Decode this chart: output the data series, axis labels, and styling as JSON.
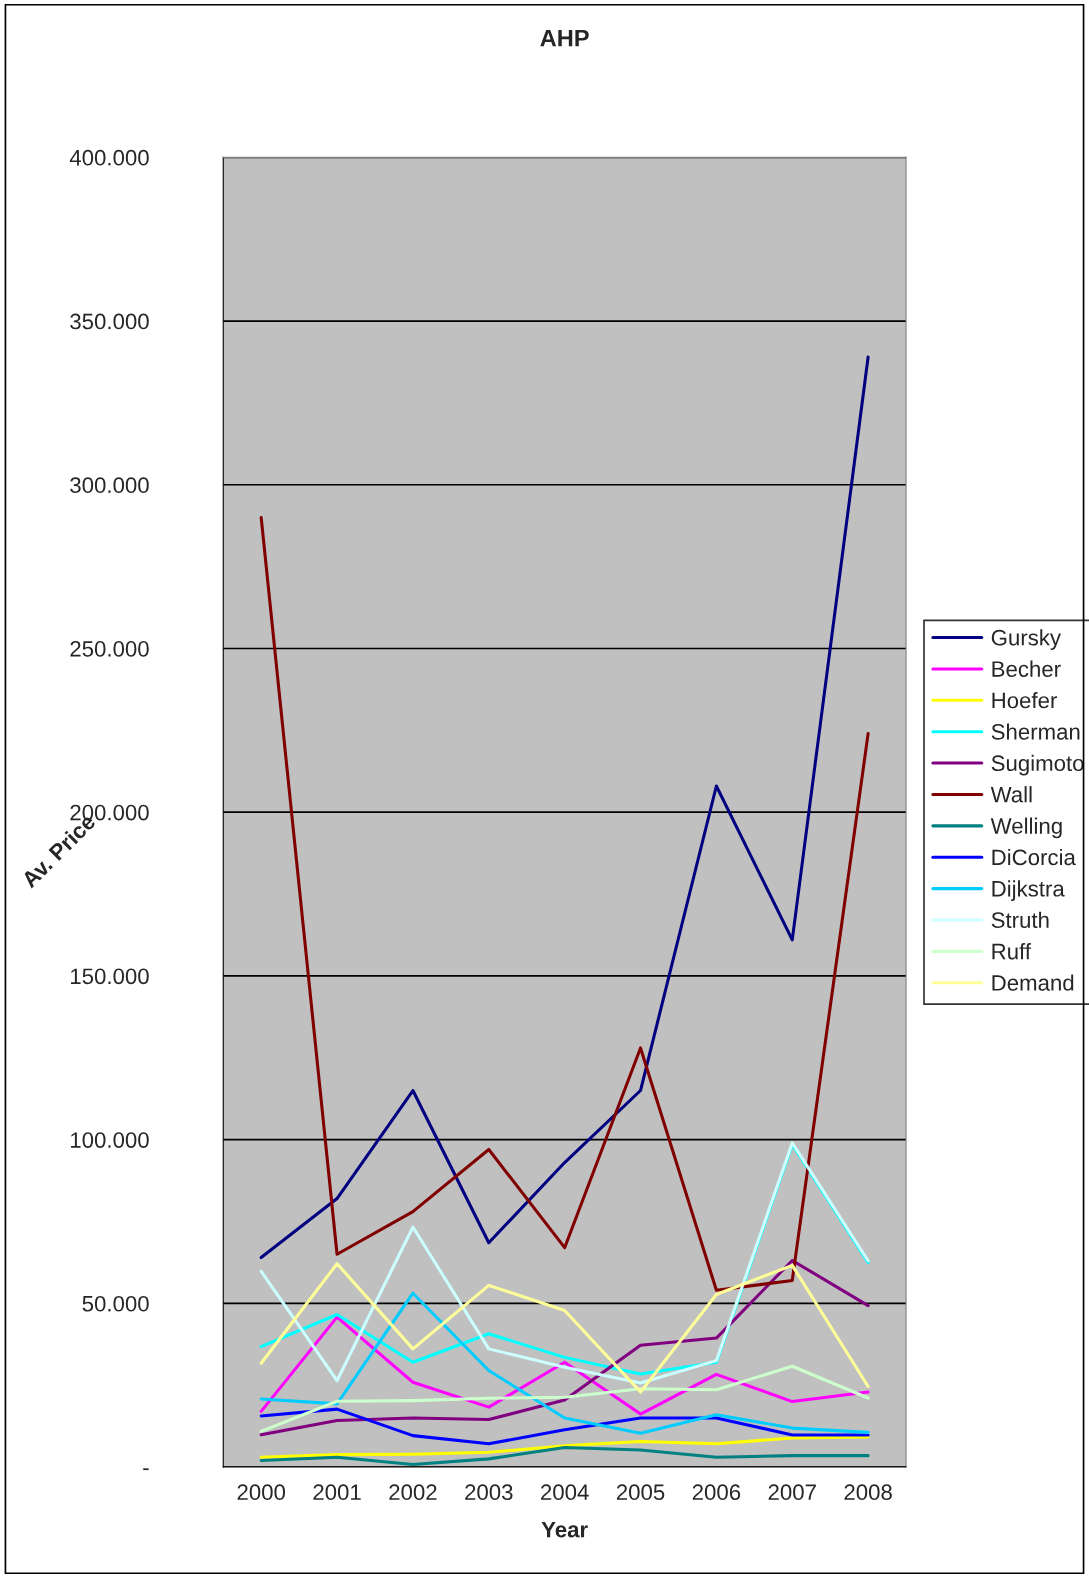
{
  "chart_data": {
    "type": "line",
    "title": "AHP",
    "xlabel": "Year",
    "ylabel": "Av. Price",
    "categories": [
      "2000",
      "2001",
      "2002",
      "2003",
      "2004",
      "2005",
      "2006",
      "2007",
      "2008"
    ],
    "ylim": [
      0,
      400
    ],
    "yticks": [
      {
        "value": 0,
        "label": "-"
      },
      {
        "value": 50,
        "label": "50.000"
      },
      {
        "value": 100,
        "label": "100.000"
      },
      {
        "value": 150,
        "label": "150.000"
      },
      {
        "value": 200,
        "label": "200.000"
      },
      {
        "value": 250,
        "label": "250.000"
      },
      {
        "value": 300,
        "label": "300.000"
      },
      {
        "value": 350,
        "label": "350.000"
      },
      {
        "value": 400,
        "label": "400.000"
      }
    ],
    "grid": "y",
    "legend": "right",
    "marker": "none",
    "line_style": "solid",
    "series": [
      {
        "name": "Gursky",
        "color": "#000080",
        "values": [
          64,
          82,
          115,
          68.5,
          93,
          115,
          208,
          161,
          339
        ]
      },
      {
        "name": "Becher",
        "color": "#ff00ff",
        "values": [
          17,
          45.8,
          25.9,
          18.3,
          32,
          16.2,
          28.3,
          20,
          22.9
        ]
      },
      {
        "name": "Hoefer",
        "color": "#ffff00",
        "values": [
          3,
          3.8,
          3.9,
          4.5,
          6.5,
          7.8,
          7.1,
          8.9,
          9.2
        ]
      },
      {
        "name": "Sherman",
        "color": "#00ffff",
        "values": [
          36.8,
          46.6,
          32,
          40.7,
          33.5,
          28.4,
          32,
          98.5,
          62.5
        ]
      },
      {
        "name": "Sugimoto",
        "color": "#800080",
        "values": [
          9.9,
          14.2,
          15,
          14.5,
          20.5,
          37.2,
          39.4,
          63.1,
          49.3
        ]
      },
      {
        "name": "Wall",
        "color": "#800000",
        "values": [
          290,
          65,
          78,
          97,
          67,
          128,
          54,
          57,
          224
        ]
      },
      {
        "name": "Welling",
        "color": "#008080",
        "values": [
          2,
          3,
          0.8,
          2.5,
          6,
          5.2,
          3,
          3.5,
          3.5
        ]
      },
      {
        "name": "DiCorcia",
        "color": "#0000ff",
        "values": [
          15.6,
          17.7,
          9.6,
          7.1,
          11.4,
          15,
          15,
          9.8,
          9.8
        ]
      },
      {
        "name": "Dijkstra",
        "color": "#00ccff",
        "values": [
          20.8,
          19.3,
          53.1,
          29.5,
          15,
          10.3,
          16,
          11.9,
          10.6
        ]
      },
      {
        "name": "Struth",
        "color": "#ccffff",
        "values": [
          59.8,
          26.4,
          73.3,
          36.1,
          30.5,
          25.7,
          32.5,
          99,
          63
        ]
      },
      {
        "name": "Ruff",
        "color": "#ccffcc",
        "values": [
          10.9,
          20.1,
          20.3,
          21,
          21.3,
          23.9,
          23.6,
          30.8,
          21.1
        ]
      },
      {
        "name": "Demand",
        "color": "#ffff99",
        "values": [
          31.7,
          62.1,
          36.1,
          55.5,
          47.8,
          22.9,
          52.7,
          61.6,
          24.6
        ]
      }
    ]
  }
}
